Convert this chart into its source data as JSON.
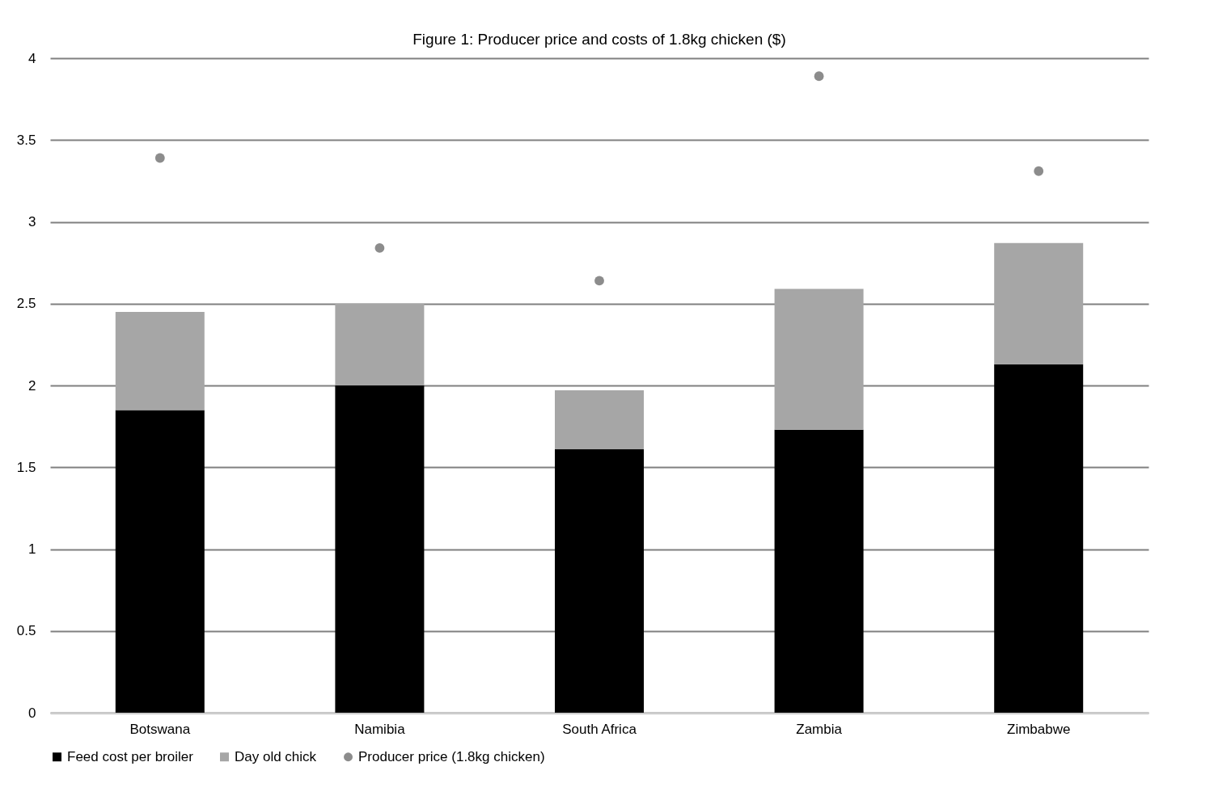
{
  "chart_data": {
    "type": "bar",
    "title": "Figure 1: Producer price and costs of 1.8kg chicken ($)",
    "categories": [
      "Botswana",
      "Namibia",
      "South Africa",
      "Zambia",
      "Zimbabwe"
    ],
    "stacked": true,
    "series": [
      {
        "name": "Feed cost per broiler",
        "color": "#000000",
        "values": [
          1.85,
          2.0,
          1.61,
          1.73,
          2.13
        ]
      },
      {
        "name": "Day old chick",
        "color": "#a6a6a6",
        "values": [
          0.6,
          0.5,
          0.36,
          0.86,
          0.74
        ]
      },
      {
        "name": "Producer price (1.8kg chicken)",
        "color": "#8c8c8c",
        "type": "scatter",
        "marker": "circle",
        "x": [
          "Botswana",
          "Namibia",
          "South Africa",
          "Zambia",
          "Zimbabwe"
        ],
        "values": [
          3.39,
          2.84,
          2.64,
          3.89,
          3.31
        ]
      }
    ],
    "ylim": [
      0,
      4
    ],
    "yticks": [
      0,
      0.5,
      1,
      1.5,
      2,
      2.5,
      3,
      3.5,
      4
    ],
    "grid": "y",
    "legend": "bottom"
  }
}
